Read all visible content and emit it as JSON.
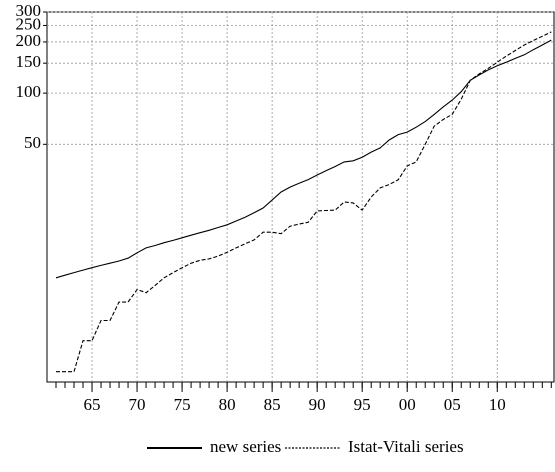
{
  "chart_data": {
    "type": "line",
    "x": [
      1961,
      1962,
      1963,
      1964,
      1965,
      1966,
      1967,
      1968,
      1969,
      1970,
      1971,
      1972,
      1973,
      1974,
      1975,
      1976,
      1977,
      1978,
      1979,
      1980,
      1981,
      1982,
      1983,
      1984,
      1985,
      1986,
      1987,
      1988,
      1989,
      1990,
      1991,
      1992,
      1993,
      1994,
      1995,
      1996,
      1997,
      1998,
      1999,
      2000,
      2001,
      2002,
      2003,
      2004,
      2005,
      2006,
      2007,
      2008,
      2009,
      2010,
      2011,
      2012,
      2013,
      2014,
      2015,
      2016
    ],
    "series": [
      {
        "name": "new series",
        "color": "#000000",
        "dash": "solid",
        "values": [
          8.2,
          8.5,
          8.8,
          9.1,
          9.4,
          9.7,
          10.0,
          10.3,
          10.7,
          11.5,
          12.3,
          12.7,
          13.2,
          13.6,
          14.1,
          14.6,
          15.1,
          15.6,
          16.2,
          16.8,
          17.7,
          18.6,
          19.8,
          21.1,
          23.5,
          26.2,
          28,
          29.5,
          31,
          33,
          35,
          37,
          39.4,
          40,
          42,
          45,
          47.6,
          53,
          57,
          59,
          63,
          68,
          75,
          83,
          91,
          102,
          119,
          128,
          137,
          145,
          152,
          160,
          168,
          180,
          192,
          205
        ]
      },
      {
        "name": "Istat-Vitali series",
        "color": "#000000",
        "dash": "dashed",
        "values": [
          2.3,
          2.3,
          2.3,
          3.5,
          3.5,
          4.6,
          4.6,
          5.9,
          5.9,
          7.0,
          6.7,
          7.4,
          8.2,
          8.8,
          9.4,
          10.0,
          10.4,
          10.6,
          11.0,
          11.6,
          12.3,
          13.0,
          13.7,
          15.2,
          15.2,
          14.9,
          16.5,
          17.0,
          17.4,
          20.3,
          20.4,
          20.5,
          22.9,
          22.6,
          20.5,
          24.5,
          27.7,
          29,
          30.9,
          37.3,
          39.4,
          50,
          64,
          70,
          75,
          92,
          119,
          130,
          140,
          152,
          165,
          178,
          192,
          204,
          216,
          229
        ]
      }
    ],
    "xlim": [
      1960,
      2016.3
    ],
    "xticks": [
      {
        "value": 1965,
        "label": "65"
      },
      {
        "value": 1970,
        "label": "70"
      },
      {
        "value": 1975,
        "label": "75"
      },
      {
        "value": 1980,
        "label": "80"
      },
      {
        "value": 1985,
        "label": "85"
      },
      {
        "value": 1990,
        "label": "90"
      },
      {
        "value": 1995,
        "label": "95"
      },
      {
        "value": 2000,
        "label": "00"
      },
      {
        "value": 2005,
        "label": "05"
      },
      {
        "value": 2010,
        "label": "10"
      }
    ],
    "ylim": [
      2,
      300
    ],
    "yticks": [
      50,
      100,
      150,
      200,
      250,
      300
    ],
    "yscale": "log",
    "grid": true,
    "legend": "bottom"
  }
}
